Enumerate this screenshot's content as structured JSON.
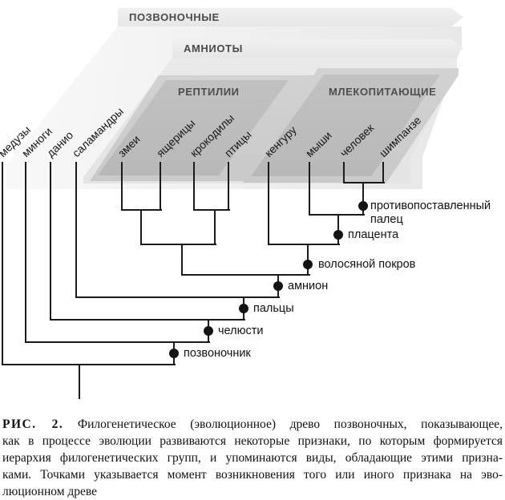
{
  "banners": [
    {
      "label": "ПОЗВОНОЧНЫЕ"
    },
    {
      "label": "АМНИОТЫ"
    }
  ],
  "groups": [
    {
      "label": "РЕПТИЛИИ"
    },
    {
      "label": "МЛЕКОПИТАЮЩИЕ"
    }
  ],
  "species": [
    {
      "label": "медузы"
    },
    {
      "label": "миноги"
    },
    {
      "label": "данио"
    },
    {
      "label": "саламандры"
    },
    {
      "label": "змеи"
    },
    {
      "label": "ящерицы"
    },
    {
      "label": "крокодилы"
    },
    {
      "label": "птицы"
    },
    {
      "label": "кенгуру"
    },
    {
      "label": "мыши"
    },
    {
      "label": "человек"
    },
    {
      "label": "шимпанзе"
    }
  ],
  "traits": [
    {
      "label": "противопоставленный палец",
      "lines": [
        "противопоставленный",
        "палец"
      ]
    },
    {
      "label": "плацента",
      "lines": [
        "плацента"
      ]
    },
    {
      "label": "волосяной покров",
      "lines": [
        "волосяной покров"
      ]
    },
    {
      "label": "амнион",
      "lines": [
        "амнион"
      ]
    },
    {
      "label": "пальцы",
      "lines": [
        "пальцы"
      ]
    },
    {
      "label": "челюсти",
      "lines": [
        "челюсти"
      ]
    },
    {
      "label": "позвоночник",
      "lines": [
        "позвоночник"
      ]
    }
  ],
  "caption": {
    "label": "РИС. 2.",
    "lines": [
      "Филогенетическое (эволюционное) древо позвоночных, показывающее,",
      "как в процессе эволюции развиваются некоторые признаки, по которым формируется",
      "иерархия филогенетических групп, и упоминаются виды, обладающие этими призна-",
      "ками. Точками указывается момент возникновения того или иного признака на эво-",
      "люционном древе"
    ]
  },
  "colors": {
    "line": "#1b1b1b",
    "dot": "#141414",
    "sheet_light": "#ededed",
    "sheet_amniotes": "#dadada",
    "sheet_group_outer": "#c6c6c6",
    "sheet_group_core": "#a8a8a8",
    "banner_text": "#4a4a4a"
  }
}
